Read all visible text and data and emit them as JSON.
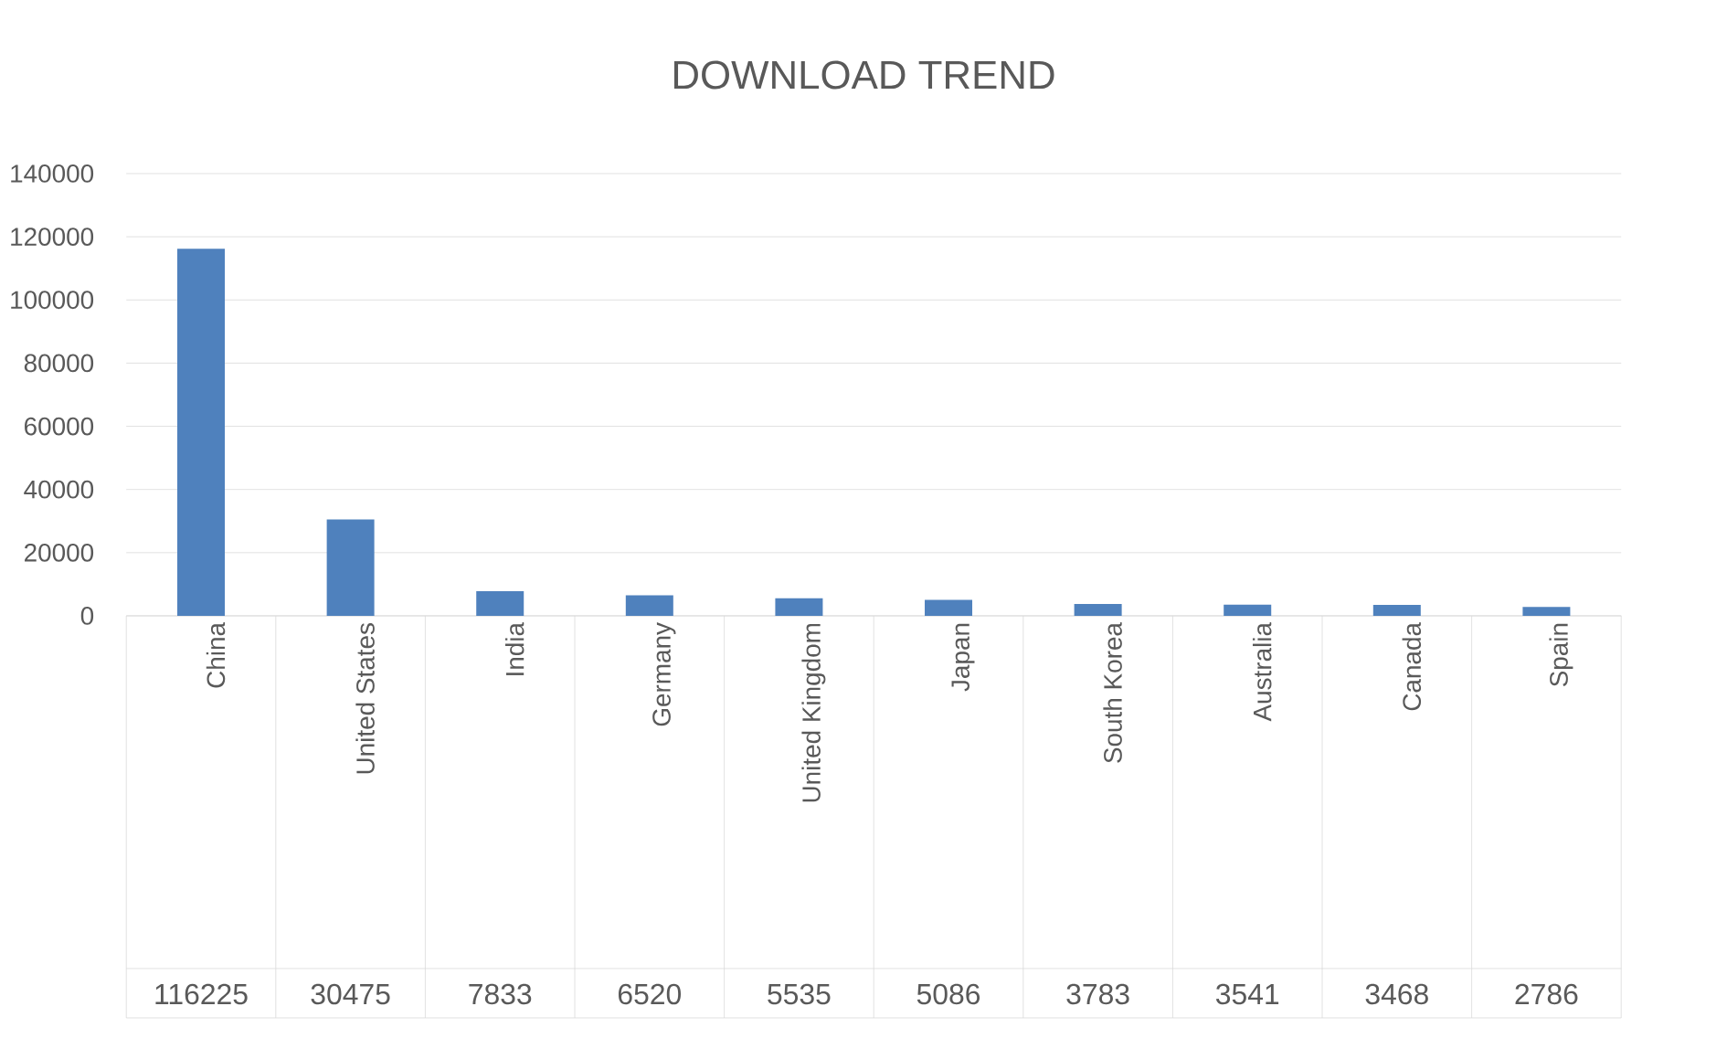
{
  "chart_data": {
    "type": "bar",
    "title": "DOWNLOAD TREND",
    "categories": [
      "China",
      "United States",
      "India",
      "Germany",
      "United Kingdom",
      "Japan",
      "South Korea",
      "Australia",
      "Canada",
      "Spain"
    ],
    "values": [
      116225,
      30475,
      7833,
      6520,
      5535,
      5086,
      3783,
      3541,
      3468,
      2786
    ],
    "color": "#4f81bd",
    "ylim": [
      0,
      140000
    ],
    "yticks": [
      0,
      20000,
      40000,
      60000,
      80000,
      100000,
      120000,
      140000
    ],
    "grid": "y",
    "data_labels": true
  }
}
